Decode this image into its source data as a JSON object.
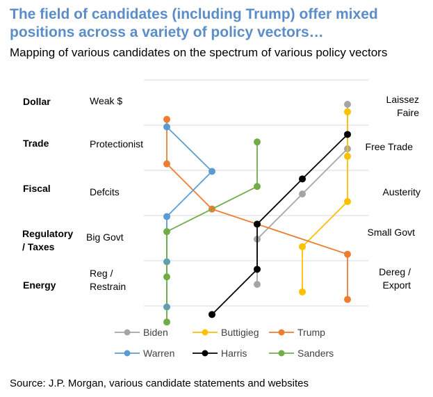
{
  "title": "The field of candidates (including Trump) offer mixed positions across a variety of policy vectors…",
  "subtitle": "Mapping of various candidates on the spectrum of various policy vectors",
  "source": "Source: J.P. Morgan, various candidate statements and websites",
  "chart_data": {
    "type": "line",
    "orientation": "policy vectors on vertical axis, candidate position on horizontal axis",
    "categories": [
      "Dollar",
      "Trade",
      "Fiscal",
      "Regulatory / Taxes",
      "Energy"
    ],
    "category_lines": [
      "Dollar",
      "Trade",
      "Fiscal",
      "Regulatory\n/ Taxes",
      "Energy"
    ],
    "left_labels": [
      "Weak $",
      "Protectionist",
      "Defcits",
      "Big Govt",
      "Reg /\nRestrain"
    ],
    "right_labels": [
      "Laissez\nFaire",
      "Free Trade",
      "Austerity",
      "Small Govt",
      "Dereg /\nExport"
    ],
    "x_range": [
      1,
      5
    ],
    "grid": true,
    "legend_position": "bottom",
    "series": [
      {
        "name": "Biden",
        "color": "#a5a5a5",
        "values": [
          5,
          5,
          4,
          3,
          3
        ]
      },
      {
        "name": "Buttigieg",
        "color": "#ffc000",
        "values": [
          5,
          5,
          5,
          4,
          4
        ]
      },
      {
        "name": "Trump",
        "color": "#ed7d31",
        "values": [
          1,
          1,
          2,
          5,
          5
        ]
      },
      {
        "name": "Warren",
        "color": "#5b9bd5",
        "values": [
          1,
          2,
          1,
          1,
          1
        ]
      },
      {
        "name": "Harris",
        "color": "#000000",
        "values": [
          5,
          4,
          3,
          3,
          2
        ]
      },
      {
        "name": "Sanders",
        "color": "#70ad47",
        "values": [
          3,
          3,
          1,
          1,
          1
        ]
      }
    ]
  }
}
